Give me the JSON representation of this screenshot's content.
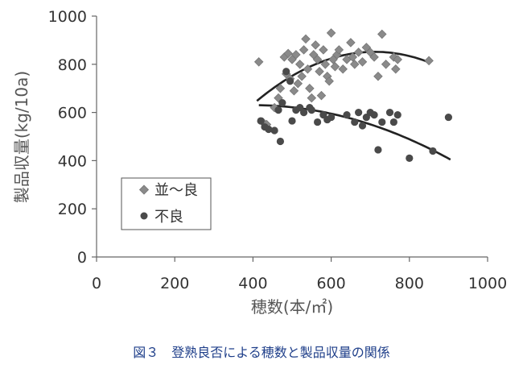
{
  "chart_data": {
    "type": "scatter",
    "xlabel": "穂数(本/㎡)",
    "ylabel": "製品収量(kg/10a)",
    "xlim": [
      0,
      1000
    ],
    "ylim": [
      0,
      1000
    ],
    "xticks": [
      0,
      200,
      400,
      600,
      800,
      1000
    ],
    "yticks": [
      0,
      200,
      400,
      600,
      800,
      1000
    ],
    "grid": false,
    "legend_position": "lower-left",
    "series": [
      {
        "name": "並〜良",
        "marker": "diamond",
        "color": "#8a8a8a",
        "points": [
          [
            415,
            810
          ],
          [
            425,
            560
          ],
          [
            435,
            550
          ],
          [
            455,
            620
          ],
          [
            465,
            660
          ],
          [
            470,
            700
          ],
          [
            480,
            830
          ],
          [
            485,
            760
          ],
          [
            490,
            845
          ],
          [
            495,
            740
          ],
          [
            500,
            820
          ],
          [
            505,
            690
          ],
          [
            510,
            840
          ],
          [
            515,
            720
          ],
          [
            520,
            800
          ],
          [
            525,
            750
          ],
          [
            530,
            860
          ],
          [
            535,
            905
          ],
          [
            540,
            780
          ],
          [
            545,
            700
          ],
          [
            550,
            660
          ],
          [
            555,
            840
          ],
          [
            560,
            880
          ],
          [
            565,
            820
          ],
          [
            570,
            770
          ],
          [
            575,
            670
          ],
          [
            580,
            860
          ],
          [
            585,
            800
          ],
          [
            590,
            750
          ],
          [
            595,
            730
          ],
          [
            600,
            930
          ],
          [
            605,
            820
          ],
          [
            610,
            790
          ],
          [
            615,
            840
          ],
          [
            620,
            860
          ],
          [
            630,
            780
          ],
          [
            640,
            820
          ],
          [
            650,
            890
          ],
          [
            655,
            830
          ],
          [
            660,
            800
          ],
          [
            670,
            850
          ],
          [
            680,
            810
          ],
          [
            690,
            870
          ],
          [
            700,
            850
          ],
          [
            710,
            830
          ],
          [
            720,
            750
          ],
          [
            730,
            925
          ],
          [
            740,
            800
          ],
          [
            760,
            830
          ],
          [
            765,
            780
          ],
          [
            770,
            820
          ],
          [
            850,
            815
          ]
        ],
        "trend": {
          "x_from": 410,
          "x_to": 850,
          "coeffs": [
            -286.0,
            3.2,
            -0.00225
          ]
        }
      },
      {
        "name": "不良",
        "marker": "circle",
        "color": "#4a4a4a",
        "points": [
          [
            420,
            565
          ],
          [
            430,
            540
          ],
          [
            440,
            530
          ],
          [
            455,
            525
          ],
          [
            465,
            610
          ],
          [
            470,
            480
          ],
          [
            475,
            640
          ],
          [
            485,
            770
          ],
          [
            495,
            730
          ],
          [
            500,
            565
          ],
          [
            510,
            610
          ],
          [
            520,
            620
          ],
          [
            530,
            600
          ],
          [
            545,
            620
          ],
          [
            550,
            610
          ],
          [
            565,
            560
          ],
          [
            580,
            590
          ],
          [
            590,
            570
          ],
          [
            600,
            580
          ],
          [
            640,
            590
          ],
          [
            660,
            560
          ],
          [
            670,
            600
          ],
          [
            680,
            545
          ],
          [
            690,
            580
          ],
          [
            700,
            600
          ],
          [
            710,
            590
          ],
          [
            720,
            445
          ],
          [
            730,
            560
          ],
          [
            750,
            600
          ],
          [
            760,
            560
          ],
          [
            770,
            590
          ],
          [
            800,
            410
          ],
          [
            860,
            440
          ],
          [
            900,
            580
          ]
        ],
        "trend": {
          "x_from": 415,
          "x_to": 905,
          "coeffs": [
            488.5,
            0.709,
            -0.000886
          ]
        }
      }
    ]
  },
  "caption": "図３　登熟良否による穂数と製品収量の関係"
}
